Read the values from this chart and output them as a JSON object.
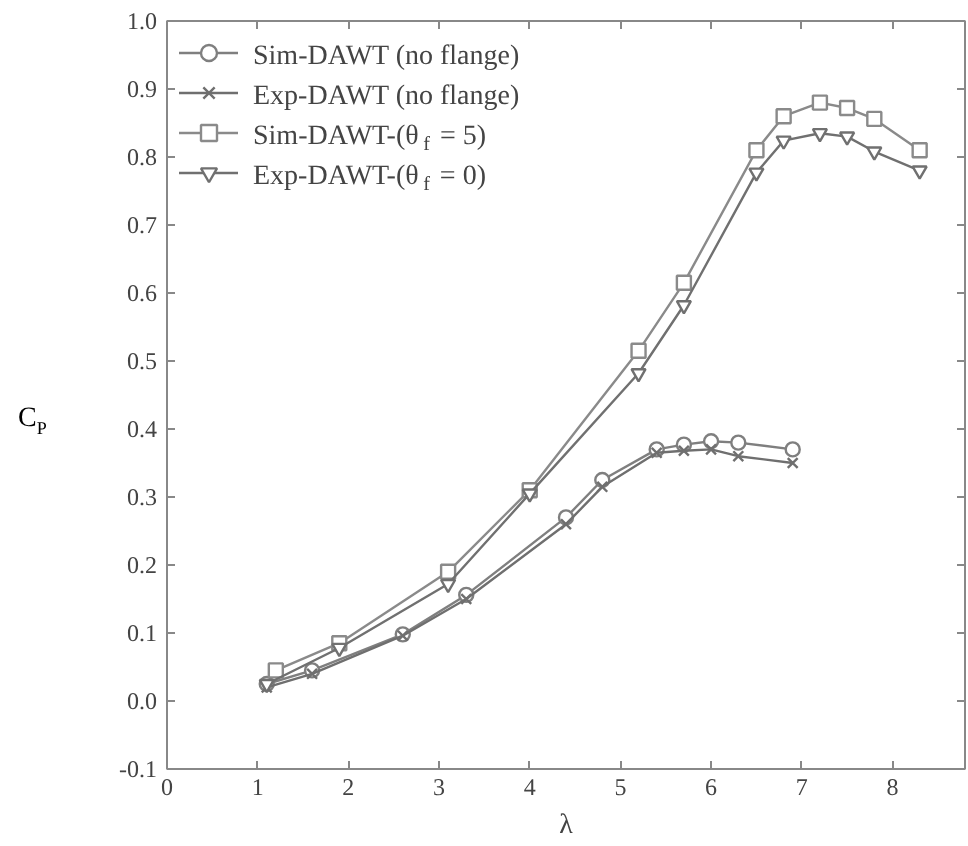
{
  "chart_data": {
    "type": "line",
    "xlabel": "λ",
    "ylabel": "C$_{P}$",
    "xlim": [
      0,
      8.8
    ],
    "xticks": [
      0,
      1,
      2,
      3,
      4,
      5,
      6,
      7,
      8
    ],
    "ylim": [
      -0.1,
      1.0
    ],
    "yticks": [
      {
        "value": -0.1,
        "label": "-0.1"
      },
      {
        "value": 0,
        "label": "0.0"
      },
      0.1,
      0.2,
      0.3,
      0.4,
      0.5,
      0.6,
      0.7,
      0.8,
      0.9,
      {
        "value": 1.0,
        "label": "1.0"
      }
    ],
    "grid": false,
    "legend": "top left",
    "line_style": "solid",
    "series": [
      {
        "name": "Sim-DAWT (no flange)",
        "color": "#7f7f7f",
        "marker": "circle",
        "x": [
          1.1,
          1.6,
          2.6,
          3.3,
          4.4,
          4.8,
          5.4,
          5.7,
          6.0,
          6.3,
          6.9
        ],
        "values": [
          0.025,
          0.045,
          0.098,
          0.156,
          0.27,
          0.325,
          0.37,
          0.377,
          0.382,
          0.38,
          0.37
        ]
      },
      {
        "name": "Exp-DAWT (no flange)",
        "color": "#6f6f6f",
        "marker": "cross",
        "x": [
          1.1,
          1.6,
          2.6,
          3.3,
          4.4,
          4.8,
          5.4,
          5.7,
          6.0,
          6.3,
          6.9
        ],
        "values": [
          0.02,
          0.04,
          0.096,
          0.15,
          0.26,
          0.315,
          0.365,
          0.368,
          0.37,
          0.36,
          0.35
        ]
      },
      {
        "name": "Sim-DAWT-(θ$_{f}$ = 5)",
        "color": "#8a8a8a",
        "marker": "square",
        "x": [
          1.2,
          1.9,
          3.1,
          4.0,
          5.2,
          5.7,
          6.5,
          6.8,
          7.2,
          7.5,
          7.8,
          8.3
        ],
        "values": [
          0.045,
          0.085,
          0.19,
          0.31,
          0.515,
          0.615,
          0.81,
          0.86,
          0.88,
          0.872,
          0.856,
          0.81
        ]
      },
      {
        "name": "Exp-DAWT-(θ$_{f}$ = 0)",
        "color": "#707070",
        "marker": "triangle",
        "x": [
          1.1,
          1.9,
          3.1,
          4.0,
          5.2,
          5.7,
          6.5,
          6.8,
          7.2,
          7.5,
          7.8,
          8.3
        ],
        "values": [
          0.025,
          0.078,
          0.172,
          0.305,
          0.482,
          0.582,
          0.777,
          0.824,
          0.835,
          0.83,
          0.808,
          0.78
        ]
      }
    ]
  }
}
